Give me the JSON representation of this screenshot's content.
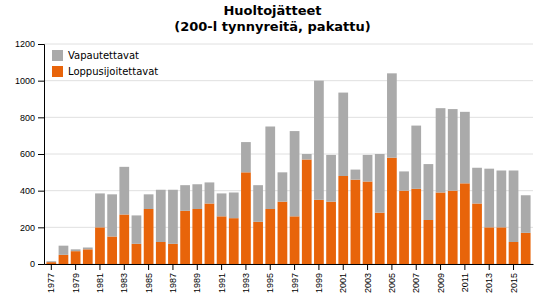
{
  "chart_data": {
    "type": "bar",
    "stacked": true,
    "title": "Huoltojätteet\n(200-l tynnyreitä, pakattu)",
    "categories": [
      1977,
      null,
      1979,
      null,
      1981,
      null,
      1983,
      null,
      1985,
      null,
      1987,
      null,
      1989,
      null,
      1991,
      null,
      1993,
      null,
      1995,
      null,
      1997,
      null,
      1999,
      null,
      2001,
      null,
      2003,
      null,
      2005,
      null,
      2007,
      null,
      2009,
      null,
      2011,
      null,
      2013,
      null,
      2015,
      null
    ],
    "series": [
      {
        "name": "Loppusijoitettavat",
        "color": "#E8640A",
        "values": [
          10,
          50,
          70,
          80,
          200,
          150,
          270,
          110,
          300,
          120,
          110,
          290,
          300,
          330,
          260,
          250,
          500,
          230,
          300,
          340,
          260,
          570,
          350,
          340,
          480,
          460,
          450,
          280,
          580,
          400,
          410,
          240,
          390,
          400,
          440,
          330,
          200,
          200,
          120,
          170
        ]
      },
      {
        "name": "Vapautettavat",
        "color": "#AAAAAA",
        "values": [
          5,
          50,
          10,
          10,
          185,
          230,
          260,
          155,
          80,
          285,
          295,
          140,
          135,
          115,
          125,
          140,
          165,
          200,
          450,
          160,
          465,
          30,
          650,
          255,
          455,
          55,
          145,
          320,
          460,
          105,
          345,
          305,
          460,
          445,
          390,
          195,
          320,
          310,
          390,
          205
        ]
      }
    ],
    "ylim": [
      0,
      1200
    ],
    "yticks": [
      0,
      200,
      400,
      600,
      800,
      1000,
      1200
    ],
    "grid": true,
    "legend": "upper left"
  }
}
